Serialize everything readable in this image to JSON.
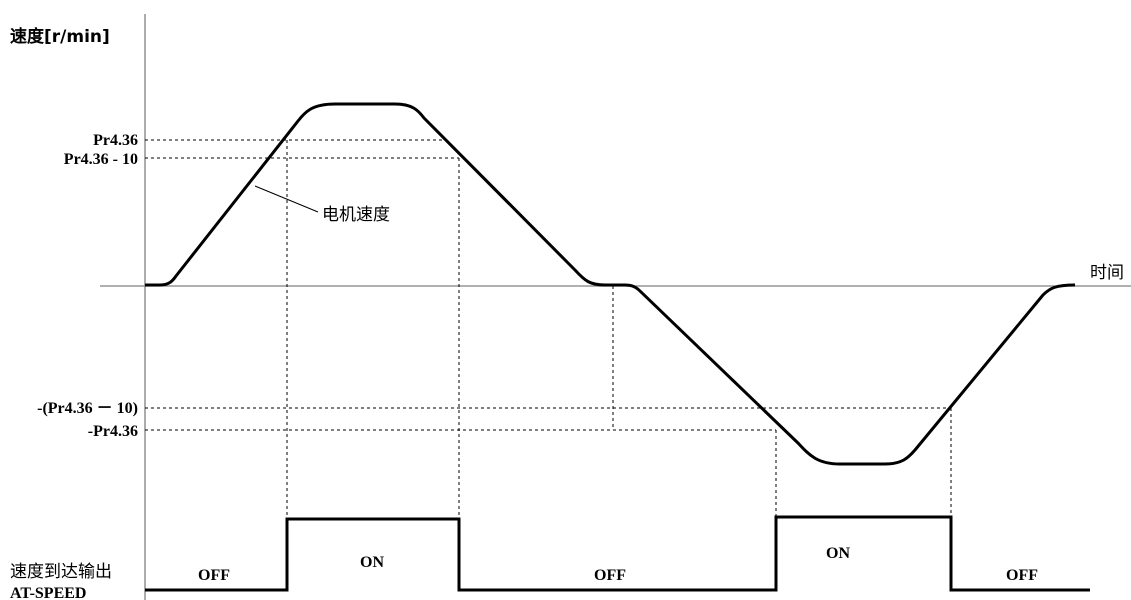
{
  "y_axis_label": "速度[r/min]",
  "x_axis_label": "时间",
  "levels": {
    "pos_upper": "Pr4.36",
    "pos_lower": "Pr4.36 - 10",
    "neg_upper": "-(Pr4.36 － 10)",
    "neg_lower": "-Pr4.36"
  },
  "curve_label": "电机速度",
  "signal": {
    "name_cn": "速度到达输出",
    "name_en": "AT-SPEED",
    "states": [
      "OFF",
      "ON",
      "OFF",
      "ON",
      "OFF"
    ]
  },
  "colors": {
    "line": "#000000",
    "axis": "#808080",
    "background": "#ffffff"
  }
}
